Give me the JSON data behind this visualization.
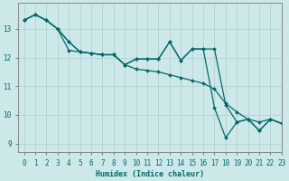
{
  "xlabel": "Humidex (Indice chaleur)",
  "ylabel": "",
  "background_color": "#cce8e8",
  "grid_color": "#b0cccc",
  "line_color": "#006b6b",
  "xlim": [
    -0.5,
    23
  ],
  "ylim": [
    8.7,
    13.9
  ],
  "yticks": [
    9,
    10,
    11,
    12,
    13
  ],
  "xticks": [
    0,
    1,
    2,
    3,
    4,
    5,
    6,
    7,
    8,
    9,
    10,
    11,
    12,
    13,
    14,
    15,
    16,
    17,
    18,
    19,
    20,
    21,
    22,
    23
  ],
  "series": [
    {
      "x": [
        0,
        1,
        2,
        3,
        4,
        5,
        6,
        7,
        8,
        9,
        10,
        11,
        12,
        13,
        14,
        15,
        16,
        17,
        18,
        19,
        20,
        21,
        22,
        23
      ],
      "y": [
        13.3,
        13.5,
        13.3,
        13.0,
        12.55,
        12.2,
        12.15,
        12.1,
        12.1,
        11.75,
        11.6,
        11.55,
        11.5,
        11.4,
        11.3,
        11.2,
        11.1,
        10.9,
        10.4,
        10.1,
        9.85,
        9.75,
        9.85,
        9.7
      ]
    },
    {
      "x": [
        0,
        1,
        2,
        3,
        4,
        5,
        6,
        7,
        8,
        9,
        10,
        11,
        12,
        13,
        14,
        15,
        16,
        17,
        18,
        19,
        20,
        21,
        22,
        23
      ],
      "y": [
        13.3,
        13.5,
        13.3,
        13.0,
        12.55,
        12.2,
        12.15,
        12.1,
        12.1,
        11.75,
        11.95,
        11.95,
        11.95,
        12.55,
        11.9,
        12.3,
        12.3,
        12.3,
        10.35,
        9.75,
        9.85,
        9.45,
        9.85,
        9.7
      ]
    },
    {
      "x": [
        0,
        1,
        2,
        3,
        4,
        5,
        6,
        7,
        8,
        9,
        10,
        11,
        12,
        13,
        14,
        15,
        16,
        17,
        18,
        19,
        20,
        21,
        22,
        23
      ],
      "y": [
        13.3,
        13.5,
        13.3,
        13.0,
        12.25,
        12.2,
        12.15,
        12.1,
        12.1,
        11.75,
        11.95,
        11.95,
        11.95,
        12.55,
        11.9,
        12.3,
        12.3,
        10.25,
        9.2,
        9.75,
        9.85,
        9.45,
        9.85,
        9.7
      ]
    }
  ]
}
